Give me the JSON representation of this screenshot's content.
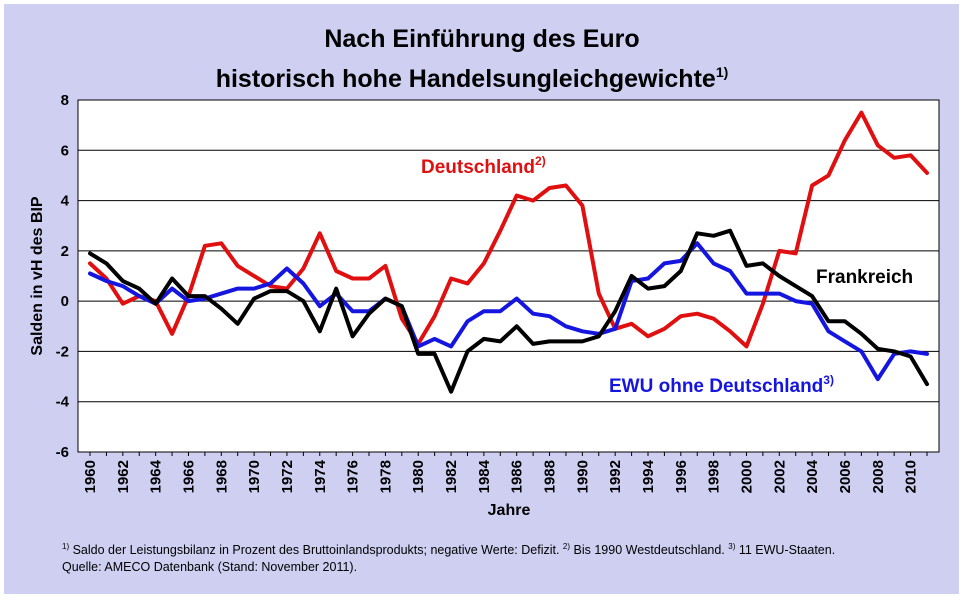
{
  "title_line1": "Nach Einführung des Euro",
  "title_line2": "historisch hohe Handelsungleichgewichte",
  "title_sup": "1)",
  "footnote": {
    "s1": "1)",
    "t1": " Saldo der Leistungsbilanz in Prozent des Bruttoinlandsprodukts; negative Werte: Defizit. ",
    "s2": "2)",
    "t2": " Bis 1990 Westdeutschland. ",
    "s3": "3)",
    "t3": " 11 EWU-Staaten.",
    "line2": "Quelle: AMECO Datenbank (Stand: November 2011)."
  },
  "colors": {
    "background": "#cfcff2",
    "plot": "#ffffff",
    "gridline": "#000000"
  },
  "chart_data": {
    "type": "line",
    "title": "Nach Einführung des Euro historisch hohe Handelsungleichgewichte",
    "xlabel": "Jahre",
    "ylabel": "Salden in vH des BIP",
    "ylim": [
      -6,
      8
    ],
    "yticks": [
      8,
      6,
      4,
      2,
      0,
      -2,
      -4,
      -6
    ],
    "xlim": [
      1960,
      2011
    ],
    "xticks": [
      "1960",
      "1962",
      "1964",
      "1966",
      "1968",
      "1970",
      "1972",
      "1974",
      "1976",
      "1978",
      "1980",
      "1982",
      "1984",
      "1986",
      "1988",
      "1990",
      "1992",
      "1994",
      "1996",
      "1998",
      "2000",
      "2002",
      "2004",
      "2006",
      "2008",
      "2010"
    ],
    "grid": true,
    "x": [
      1960,
      1961,
      1962,
      1963,
      1964,
      1965,
      1966,
      1967,
      1968,
      1969,
      1970,
      1971,
      1972,
      1973,
      1974,
      1975,
      1976,
      1977,
      1978,
      1979,
      1980,
      1981,
      1982,
      1983,
      1984,
      1985,
      1986,
      1987,
      1988,
      1989,
      1990,
      1991,
      1992,
      1993,
      1994,
      1995,
      1996,
      1997,
      1998,
      1999,
      2000,
      2001,
      2002,
      2003,
      2004,
      2005,
      2006,
      2007,
      2008,
      2009,
      2010,
      2011
    ],
    "series": [
      {
        "name": "Deutschland",
        "label_sup": "2)",
        "color": "#e01010",
        "values": [
          1.5,
          0.9,
          -0.1,
          0.2,
          0.0,
          -1.3,
          0.2,
          2.2,
          2.3,
          1.4,
          1.0,
          0.6,
          0.5,
          1.3,
          2.7,
          1.2,
          0.9,
          0.9,
          1.4,
          -0.7,
          -1.7,
          -0.6,
          0.9,
          0.7,
          1.5,
          2.8,
          4.2,
          4.0,
          4.5,
          4.6,
          3.8,
          0.3,
          -1.1,
          -0.9,
          -1.4,
          -1.1,
          -0.6,
          -0.5,
          -0.7,
          -1.2,
          -1.8,
          -0.1,
          2.0,
          1.9,
          4.6,
          5.0,
          6.4,
          7.5,
          6.2,
          5.7,
          5.8,
          5.1
        ]
      },
      {
        "name": "Frankreich",
        "color": "#000000",
        "values": [
          1.9,
          1.5,
          0.8,
          0.5,
          -0.1,
          0.9,
          0.2,
          0.2,
          -0.3,
          -0.9,
          0.1,
          0.4,
          0.4,
          0.0,
          -1.2,
          0.5,
          -1.4,
          -0.5,
          0.1,
          -0.2,
          -2.1,
          -2.1,
          -3.6,
          -2.0,
          -1.5,
          -1.6,
          -1.0,
          -1.7,
          -1.6,
          -1.6,
          -1.6,
          -1.4,
          -0.4,
          1.0,
          0.5,
          0.6,
          1.2,
          2.7,
          2.6,
          2.8,
          1.4,
          1.5,
          1.0,
          0.6,
          0.2,
          -0.8,
          -0.8,
          -1.3,
          -1.9,
          -2.0,
          -2.2,
          -3.3
        ]
      },
      {
        "name": "EWU ohne Deutschland",
        "label_sup": "3)",
        "color": "#1515e0",
        "values": [
          1.1,
          0.8,
          0.6,
          0.2,
          -0.1,
          0.5,
          0.0,
          0.1,
          0.3,
          0.5,
          0.5,
          0.7,
          1.3,
          0.7,
          -0.2,
          0.3,
          -0.4,
          -0.4,
          0.1,
          -0.2,
          -1.8,
          -1.5,
          -1.8,
          -0.8,
          -0.4,
          -0.4,
          0.1,
          -0.5,
          -0.6,
          -1.0,
          -1.2,
          -1.3,
          -1.1,
          0.8,
          0.9,
          1.5,
          1.6,
          2.3,
          1.5,
          1.2,
          0.3,
          0.3,
          0.3,
          0.0,
          -0.1,
          -1.2,
          -1.6,
          -2.0,
          -3.1,
          -2.1,
          -2.0,
          -2.1
        ]
      }
    ]
  }
}
